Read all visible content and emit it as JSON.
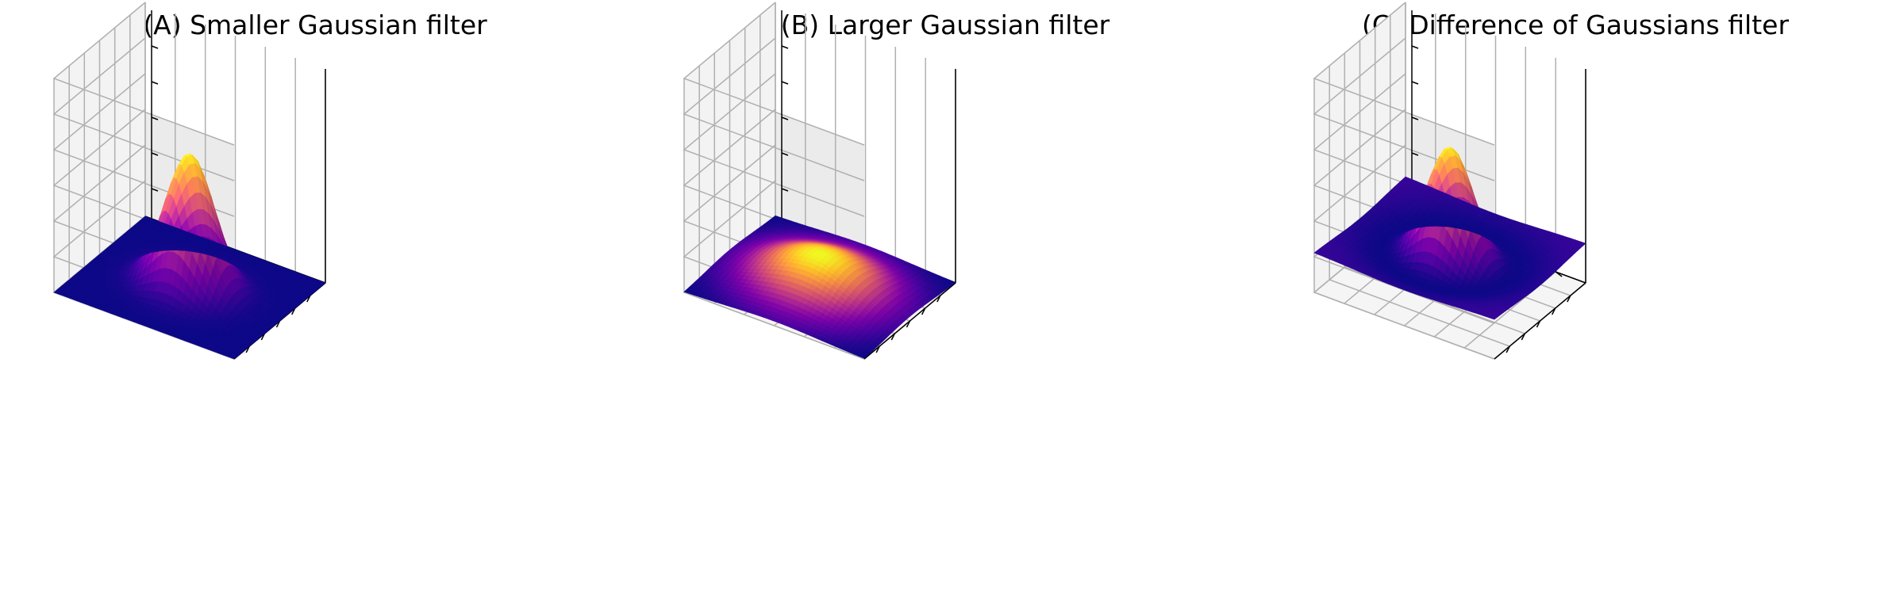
{
  "chart_data": [
    {
      "type": "surface3d",
      "title": "(A) Smaller Gaussian filter",
      "xlabel": "",
      "ylabel": "",
      "zlabel": "",
      "tick_labels_shown": false,
      "grid": true,
      "colormap": "plasma",
      "surface": {
        "kind": "gaussian",
        "sigma": 1.0,
        "amplitude": 1.0,
        "center": [
          0,
          0
        ]
      },
      "xlim": [
        -4,
        4
      ],
      "ylim": [
        -4,
        4
      ],
      "zlim": [
        0,
        1.6
      ]
    },
    {
      "type": "surface3d",
      "title": "(B) Larger Gaussian filter",
      "xlabel": "",
      "ylabel": "",
      "zlabel": "",
      "tick_labels_shown": false,
      "grid": true,
      "colormap": "plasma",
      "surface": {
        "kind": "gaussian",
        "sigma": 2.0,
        "amplitude": 0.25,
        "center": [
          0,
          0
        ]
      },
      "xlim": [
        -4,
        4
      ],
      "ylim": [
        -4,
        4
      ],
      "zlim": [
        0,
        1.6
      ]
    },
    {
      "type": "surface3d",
      "title": "(C) Difference of Gaussians filter",
      "xlabel": "",
      "ylabel": "",
      "zlabel": "",
      "tick_labels_shown": false,
      "grid": true,
      "colormap": "plasma",
      "surface": {
        "kind": "difference_of_gaussians",
        "sigma_small": 1.0,
        "sigma_large": 2.0,
        "amplitude_small": 1.0,
        "amplitude_large": 0.25,
        "center": [
          0,
          0
        ]
      },
      "xlim": [
        -4,
        4
      ],
      "ylim": [
        -4,
        4
      ],
      "zlim": [
        -0.3,
        1.3
      ]
    }
  ]
}
